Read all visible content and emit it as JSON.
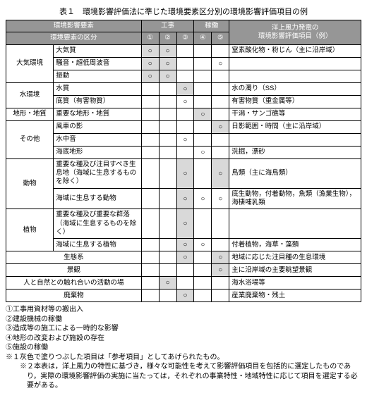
{
  "title": "表１　環境影響評価法に準じた環境要素区分別の環境影響評価項目の例",
  "headers": {
    "env_factor": "環境影響要素",
    "env_class": "環境要素の区分",
    "construction": "工事",
    "operation": "稼働",
    "wind_eval": "洋上風力発電の\n環境影響評価項目（例）",
    "num1": "①",
    "num2": "②",
    "num3": "③",
    "num4": "④",
    "num5": "⑤"
  },
  "circle": "○",
  "groups": [
    {
      "cat": "大気環境",
      "rows": [
        {
          "item": "大気質",
          "c": [
            "○",
            "○",
            "",
            "",
            ""
          ],
          "eval": "窒素酸化物・粉じん（主に沿岸域）",
          "gray": [
            1,
            2
          ]
        },
        {
          "item": "騒音・超低周波音",
          "c": [
            "○",
            "○",
            "",
            "",
            "○"
          ],
          "eval": "",
          "gray": [
            1,
            2
          ]
        },
        {
          "item": "振動",
          "c": [
            "○",
            "○",
            "",
            "",
            ""
          ],
          "eval": "",
          "gray": [
            1,
            2
          ]
        }
      ]
    },
    {
      "cat": "水環境",
      "rows": [
        {
          "item": "水質",
          "c": [
            "",
            "",
            "○",
            "",
            ""
          ],
          "eval": "水の濁り（SS）",
          "gray": [
            3
          ]
        },
        {
          "item": "底質（有害物質）",
          "c": [
            "",
            "",
            "○",
            "",
            ""
          ],
          "eval": "有害物質（重金属等）",
          "gray": []
        }
      ]
    },
    {
      "cat": "地形・地質",
      "rows": [
        {
          "item": "重要な地形・地質",
          "c": [
            "",
            "",
            "",
            "○",
            ""
          ],
          "eval": "干潟・サンゴ礁等",
          "gray": [
            4
          ]
        }
      ]
    },
    {
      "cat": "その他",
      "rows": [
        {
          "item": "風車の影",
          "c": [
            "",
            "",
            "",
            "",
            "○"
          ],
          "eval": "日影範囲・時間（主に沿岸域）",
          "gray": [
            5
          ]
        },
        {
          "item": "水中音",
          "c": [
            "",
            "",
            "○",
            "",
            ""
          ],
          "eval": "",
          "gray": []
        },
        {
          "item": "海底地形",
          "c": [
            "",
            "",
            "",
            "○",
            ""
          ],
          "eval": "洗掘，漂砂",
          "gray": []
        }
      ]
    },
    {
      "cat": "動物",
      "rows": [
        {
          "item": "重要な種及び注目すべき生息地（海域に生息するものを除く）",
          "c": [
            "",
            "",
            "○",
            "",
            "○"
          ],
          "eval": "鳥類（主に海鳥類）",
          "gray": [
            3,
            5
          ]
        },
        {
          "item": "海域に生息する動物",
          "c": [
            "",
            "",
            "○",
            "○",
            "○"
          ],
          "eval": "底生動物，付着動物，魚類（漁業生物），海棲哺乳類",
          "gray": [
            3
          ]
        }
      ]
    },
    {
      "cat": "植物",
      "rows": [
        {
          "item": "重要な種及び重要な群落（海域に生息するものを除く）",
          "c": [
            "",
            "",
            "○",
            "",
            ""
          ],
          "eval": "",
          "gray": [
            3
          ]
        },
        {
          "item": "海域に生息する植物",
          "c": [
            "",
            "",
            "○",
            "○",
            ""
          ],
          "eval": "付着植物，海草・藻類",
          "gray": [
            3
          ]
        }
      ]
    },
    {
      "cat": "生態系",
      "rows": [
        {
          "item": "",
          "c": [
            "",
            "",
            "○",
            "",
            "○"
          ],
          "eval": "地域に応じた注目種の生息環境",
          "gray": [
            3,
            5
          ],
          "merge": true
        }
      ]
    },
    {
      "cat": "景観",
      "rows": [
        {
          "item": "",
          "c": [
            "",
            "",
            "",
            "",
            "○"
          ],
          "eval": "主に沿岸域の主要眺望景観",
          "gray": [
            5
          ],
          "merge": true
        }
      ]
    },
    {
      "cat": "人と自然との触れ合いの活動の場",
      "rows": [
        {
          "item": "",
          "c": [
            "",
            "○",
            "",
            "",
            ""
          ],
          "eval": "海水浴場等",
          "gray": [
            2
          ],
          "merge": true
        }
      ]
    },
    {
      "cat": "廃棄物",
      "rows": [
        {
          "item": "",
          "c": [
            "",
            "",
            "○",
            "",
            ""
          ],
          "eval": "産業廃棄物・残土",
          "gray": [
            3
          ],
          "merge": true
        }
      ]
    }
  ],
  "notes": [
    "①工事用資材等の搬出入",
    "②建設機械の稼働",
    "③造成等の施工による一時的な影響",
    "④地形の改変および施設の存在",
    "⑤施設の稼働",
    "※１灰色で塗りつぶした項目は「参考項目」としてあげられたもの。",
    "※２本表は，洋上風力の特性に基づき，様々な可能性を考えて影響評価項目を包括的に選定したものであり，実際の環境影響評価の実施に当たっては，それぞれの事業特性・地域特性に応じて項目を選定する必要がある。"
  ]
}
